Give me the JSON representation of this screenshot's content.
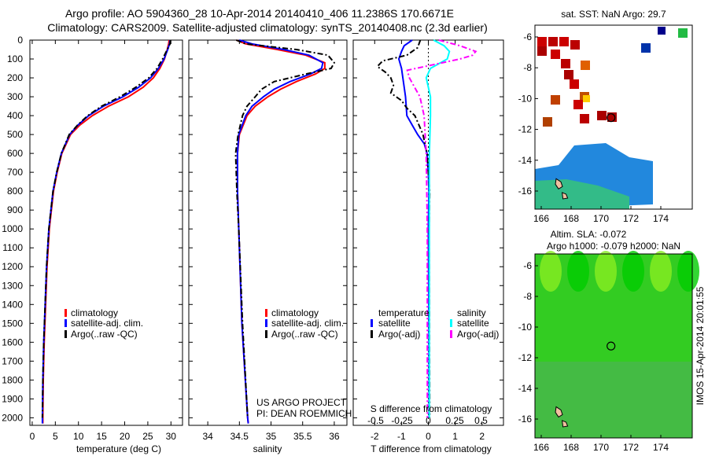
{
  "title": {
    "line1": "Argo profile: AO 5904360_28 10-Apr-2014 20140410_406 11.2386S 170.6671E",
    "line2": "Climatology: CARS2009. Satellite-adjusted climatology: synTS_20140408.nc (2.3d earlier)"
  },
  "side_stamp": "IMOS 15-Apr-2014 20:01:55",
  "chart_data": [
    {
      "type": "line",
      "name": "temperature",
      "xlabel": "temperature (deg C)",
      "ylabel": "depth",
      "xlim": [
        -0.5,
        32.5
      ],
      "ylim": [
        2040,
        0
      ],
      "xticks": [
        0,
        5,
        10,
        15,
        20,
        25,
        30
      ],
      "yticks": [
        0,
        100,
        200,
        300,
        400,
        500,
        600,
        700,
        800,
        900,
        1000,
        1100,
        1200,
        1300,
        1400,
        1500,
        1600,
        1700,
        1800,
        1900,
        2000
      ],
      "legend": [
        "climatology",
        "satellite-adj. clim.",
        "Argo(..raw -QC)"
      ],
      "series": [
        {
          "name": "climatology",
          "color": "#ff0000",
          "depth": [
            0,
            20,
            50,
            100,
            150,
            200,
            250,
            300,
            350,
            400,
            450,
            500,
            600,
            700,
            800,
            1000,
            1200,
            1400,
            1600,
            1800,
            2000,
            2030
          ],
          "values": [
            29.6,
            29.5,
            29.2,
            28.6,
            27.6,
            26.2,
            24.0,
            20.8,
            16.5,
            13.0,
            10.3,
            8.3,
            6.4,
            5.4,
            4.6,
            3.7,
            3.2,
            2.9,
            2.6,
            2.4,
            2.3,
            2.3
          ]
        },
        {
          "name": "satellite-adj. clim.",
          "color": "#0000ff",
          "depth": [
            0,
            20,
            50,
            100,
            150,
            200,
            250,
            300,
            350,
            400,
            450,
            500,
            600,
            700,
            800,
            1000,
            1200,
            1400,
            1600,
            1800,
            2000,
            2030
          ],
          "values": [
            29.8,
            29.7,
            29.3,
            28.5,
            27.3,
            25.6,
            23.0,
            19.6,
            15.4,
            12.2,
            9.9,
            8.1,
            6.3,
            5.3,
            4.5,
            3.6,
            3.1,
            2.8,
            2.5,
            2.3,
            2.2,
            2.2
          ]
        },
        {
          "name": "Argo(..raw -QC)",
          "color": "#000000",
          "depth": [
            0,
            20,
            50,
            100,
            150,
            200,
            250,
            300,
            350,
            400,
            450,
            500,
            600,
            700,
            800,
            1000,
            1200,
            1400,
            1600,
            1800,
            2000
          ],
          "values": [
            29.9,
            29.8,
            29.2,
            28.2,
            27.0,
            25.2,
            22.4,
            19.0,
            15.0,
            12.0,
            9.8,
            8.0,
            6.3,
            5.3,
            4.5,
            3.6,
            3.1,
            2.8,
            2.5,
            2.3,
            2.2
          ]
        }
      ]
    },
    {
      "type": "line",
      "name": "salinity",
      "xlabel": "salinity",
      "xlim": [
        33.7,
        36.2
      ],
      "ylim": [
        2040,
        0
      ],
      "xticks": [
        34,
        34.5,
        35,
        35.5,
        36
      ],
      "legend": [
        "climatology",
        "satellite-adj. clim.",
        "Argo(..raw -QC)"
      ],
      "annotation": [
        "US ARGO PROJECT",
        "PI: DEAN ROEMMICH"
      ],
      "series": [
        {
          "name": "climatology",
          "color": "#ff0000",
          "depth": [
            0,
            20,
            50,
            80,
            120,
            150,
            180,
            220,
            260,
            300,
            350,
            400,
            500,
            600,
            800,
            1000,
            1500,
            2000,
            2030
          ],
          "values": [
            34.45,
            34.6,
            35.1,
            35.55,
            35.85,
            35.85,
            35.7,
            35.4,
            35.15,
            34.95,
            34.75,
            34.62,
            34.5,
            34.47,
            34.47,
            34.49,
            34.54,
            34.63,
            34.64
          ]
        },
        {
          "name": "satellite-adj. clim.",
          "color": "#0000ff",
          "depth": [
            0,
            20,
            50,
            80,
            120,
            150,
            180,
            220,
            260,
            300,
            350,
            400,
            500,
            600,
            800,
            1000,
            1500,
            2000,
            2030
          ],
          "values": [
            34.5,
            34.7,
            35.2,
            35.6,
            35.82,
            35.8,
            35.62,
            35.3,
            35.05,
            34.88,
            34.7,
            34.6,
            34.49,
            34.47,
            34.47,
            34.49,
            34.54,
            34.63,
            34.64
          ]
        },
        {
          "name": "Argo(..raw -QC)",
          "color": "#000000",
          "depth": [
            0,
            20,
            50,
            80,
            120,
            150,
            180,
            220,
            260,
            300,
            350,
            400,
            500,
            600,
            700,
            800,
            1000,
            1500,
            2000
          ],
          "values": [
            34.45,
            34.6,
            35.4,
            35.9,
            36.0,
            35.95,
            35.55,
            35.05,
            34.85,
            34.75,
            34.62,
            34.55,
            34.48,
            34.44,
            34.45,
            34.46,
            34.49,
            34.55,
            34.63
          ]
        }
      ]
    },
    {
      "type": "line",
      "name": "difference",
      "xlabel": "T difference from climatology",
      "xlabel2": "S difference from climatology",
      "xlim": [
        -2.8,
        2.8
      ],
      "ylim": [
        2040,
        0
      ],
      "xticks": [
        -2,
        -1,
        0,
        1,
        2
      ],
      "xticks2": [
        -0.5,
        -0.25,
        0,
        0.25,
        0.5
      ],
      "xticks2_labels": [
        "-0.5",
        "-0.25",
        "0",
        "0.25",
        "0.5"
      ],
      "legend_headers": [
        "temperature",
        "salinity"
      ],
      "legend": [
        "satellite",
        "Argo(-adj)",
        "satellite",
        "Argo(-adj)"
      ],
      "series": [
        {
          "name": "T satellite",
          "color": "#0000ff",
          "depth": [
            0,
            30,
            60,
            100,
            150,
            200,
            300,
            400,
            450,
            500,
            550,
            600,
            700,
            800,
            1000,
            1500,
            2000
          ],
          "values": [
            -0.6,
            -0.9,
            -1.0,
            -1.1,
            -1.0,
            -0.95,
            -0.85,
            -0.8,
            -0.6,
            -0.4,
            -0.15,
            -0.05,
            0,
            0.02,
            0,
            0.02,
            0.03
          ]
        },
        {
          "name": "T Argo(-adj)",
          "color": "#000000",
          "depth": [
            0,
            40,
            80,
            110,
            140,
            170,
            200,
            240,
            280,
            320,
            360,
            400,
            450,
            500,
            600,
            800,
            1000,
            1500,
            2000
          ],
          "values": [
            -0.3,
            -0.4,
            -0.8,
            -1.7,
            -1.9,
            -1.6,
            -1.4,
            -1.3,
            -1.4,
            -1.0,
            -0.8,
            -0.5,
            -0.35,
            -0.2,
            -0.05,
            0.05,
            0.03,
            0.04,
            0.05
          ]
        },
        {
          "name": "S satellite",
          "color": "#00ffff",
          "depth": [
            0,
            30,
            60,
            100,
            150,
            200,
            250,
            300,
            400,
            600,
            1000,
            2000
          ],
          "values": [
            0.05,
            0.15,
            0.2,
            0.18,
            0.02,
            -0.02,
            0,
            0.02,
            0.02,
            0.01,
            0.01,
            0.01
          ]
        },
        {
          "name": "S Argo(-adj)",
          "color": "#ff00ff",
          "depth": [
            0,
            30,
            60,
            80,
            100,
            130,
            160,
            200,
            260,
            300,
            400,
            600,
            1000,
            2000
          ],
          "values": [
            0.1,
            0.3,
            0.45,
            0.42,
            0.3,
            0.05,
            -0.2,
            -0.18,
            -0.12,
            -0.08,
            -0.04,
            -0.02,
            -0.01,
            -0.01
          ]
        }
      ]
    }
  ],
  "maps": [
    {
      "name": "sst-map",
      "title": "sat. SST: NaN Argo: 29.7",
      "lon_ticks": [
        166,
        168,
        170,
        172,
        174
      ],
      "lat_ticks": [
        -6,
        -8,
        -10,
        -12,
        -14,
        -16
      ],
      "argo_position": {
        "lon": 170.6671,
        "lat": -11.2386
      }
    },
    {
      "name": "sla-map",
      "title_line1": "Altim. SLA: -0.072",
      "title_line2": "Argo h1000: -0.079 h2000: NaN",
      "lon_ticks": [
        166,
        168,
        170,
        172,
        174
      ],
      "lat_ticks": [
        -6,
        -8,
        -10,
        -12,
        -14,
        -16
      ],
      "argo_position": {
        "lon": 170.6671,
        "lat": -11.2386
      }
    }
  ]
}
